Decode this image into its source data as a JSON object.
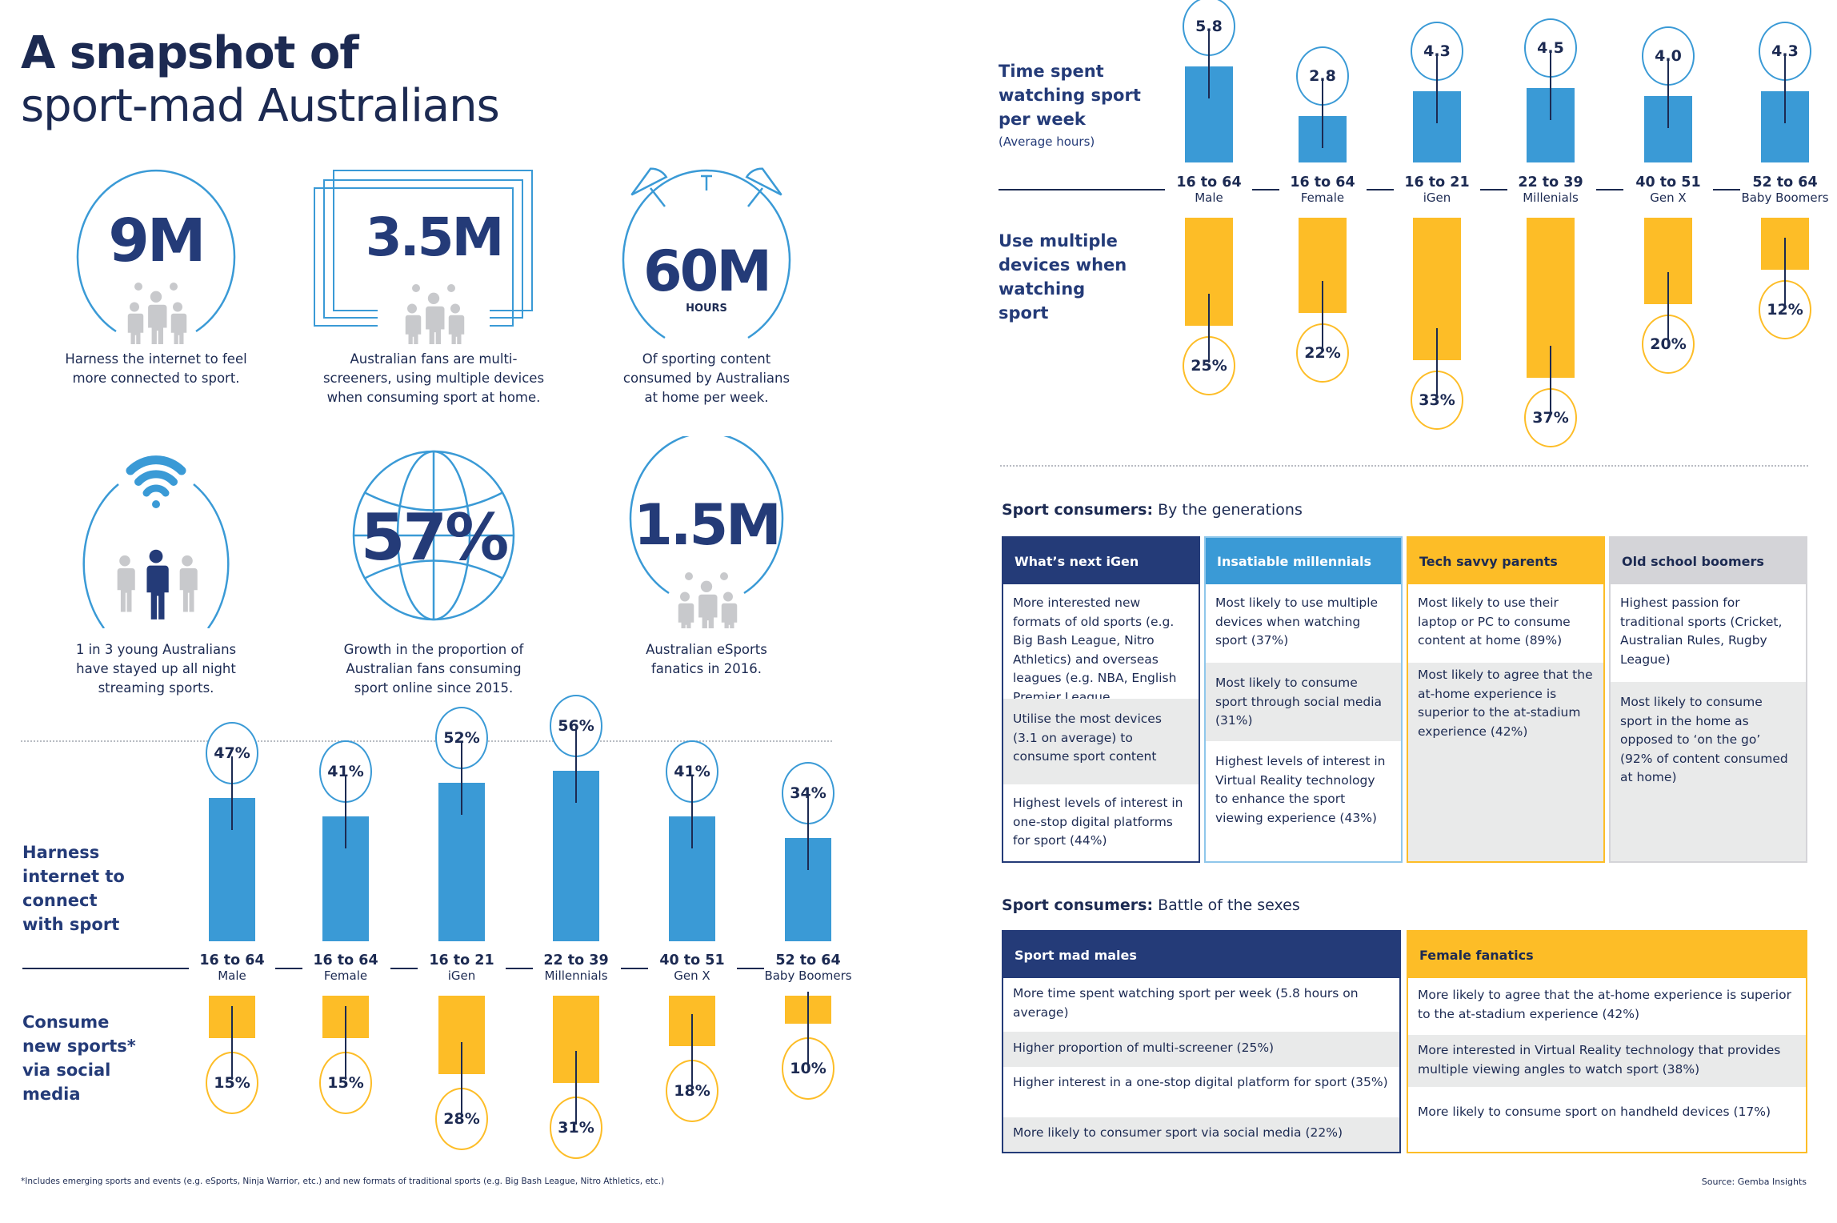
{
  "title": {
    "line1": "A snapshot of",
    "line2": "sport-mad Australians"
  },
  "colors": {
    "navy": "#243b78",
    "blue": "#3a9ad6",
    "gold": "#fdbd27",
    "grey": "#d4d4d8",
    "light_grey": "#e9eaea",
    "figure_grey": "#c8c9cc"
  },
  "stats": [
    {
      "value": "9M",
      "icon": "people-in-circle-icon",
      "caption": [
        "Harness the internet to feel",
        "more connected to sport."
      ]
    },
    {
      "value": "3.5M",
      "icon": "stacked-screens-icon",
      "caption": [
        "Australian fans are multi-",
        "screeners, using multiple devices",
        "when consuming sport at home."
      ]
    },
    {
      "value": "60M",
      "sub": "HOURS",
      "icon": "alarm-clock-icon",
      "caption": [
        "Of sporting content",
        "consumed by Australians",
        "at home per week."
      ]
    },
    {
      "value": "",
      "icon": "wifi-person-icon",
      "caption": [
        "1 in 3 young Australians",
        "have stayed up all night",
        "streaming sports."
      ]
    },
    {
      "value": "57%",
      "icon": "globe-icon",
      "caption": [
        "Growth in the proportion of",
        "Australian fans consuming",
        "sport online since 2015."
      ]
    },
    {
      "value": "1.5M",
      "icon": "people-in-circle-icon",
      "caption": [
        "Australian eSports",
        "fanatics in 2016."
      ]
    }
  ],
  "chart_data": [
    {
      "type": "bar",
      "title": "Harness internet to connect with sport / Consume new sports* via social media",
      "categories": [
        {
          "range": "16 to 64",
          "name": "Male"
        },
        {
          "range": "16 to 64",
          "name": "Female"
        },
        {
          "range": "16 to 21",
          "name": "iGen"
        },
        {
          "range": "22 to 39",
          "name": "Millennials"
        },
        {
          "range": "40 to 51",
          "name": "Gen X"
        },
        {
          "range": "52 to 64",
          "name": "Baby Boomers"
        }
      ],
      "series": [
        {
          "name": "Harness internet to connect with sport",
          "label_lines": [
            "Harness",
            "internet to",
            "connect",
            "with sport"
          ],
          "direction": "up",
          "color": "#3a9ad6",
          "values": [
            47,
            41,
            52,
            56,
            41,
            34
          ],
          "labels": [
            "47%",
            "41%",
            "52%",
            "56%",
            "41%",
            "34%"
          ]
        },
        {
          "name": "Consume new sports* via social media",
          "label_lines": [
            "Consume",
            "new sports*",
            "via social",
            "media"
          ],
          "direction": "down",
          "color": "#fdbd27",
          "values": [
            15,
            15,
            28,
            31,
            18,
            10
          ],
          "labels": [
            "15%",
            "15%",
            "28%",
            "31%",
            "18%",
            "10%"
          ]
        }
      ],
      "unit": "%"
    },
    {
      "type": "bar",
      "title": "Time spent watching sport per week / Use multiple devices when watching sport",
      "categories": [
        {
          "range": "16 to 64",
          "name": "Male"
        },
        {
          "range": "16 to 64",
          "name": "Female"
        },
        {
          "range": "16 to 21",
          "name": "iGen"
        },
        {
          "range": "22 to 39",
          "name": "Millenials"
        },
        {
          "range": "40 to 51",
          "name": "Gen X"
        },
        {
          "range": "52 to 64",
          "name": "Baby Boomers"
        }
      ],
      "series": [
        {
          "name": "Time spent watching sport per week",
          "label_lines": [
            "Time spent",
            "watching sport",
            "per week"
          ],
          "sublabel": "(Average hours)",
          "direction": "up",
          "color": "#3a9ad6",
          "values": [
            5.8,
            2.8,
            4.3,
            4.5,
            4.0,
            4.3
          ],
          "labels": [
            "5.8",
            "2.8",
            "4.3",
            "4.5",
            "4.0",
            "4.3"
          ]
        },
        {
          "name": "Use multiple devices when watching sport",
          "label_lines": [
            "Use multiple",
            "devices when",
            "watching",
            "sport"
          ],
          "direction": "down",
          "color": "#fdbd27",
          "values": [
            25,
            22,
            33,
            37,
            20,
            12
          ],
          "labels": [
            "25%",
            "22%",
            "33%",
            "37%",
            "20%",
            "12%"
          ]
        }
      ]
    }
  ],
  "footnote": "*Includes emerging sports and events (e.g. eSports, Ninja Warrior, etc.) and new formats of traditional sports (e.g. Big Bash League, Nitro Athletics, etc.)",
  "generations": {
    "heading_bold": "Sport consumers:",
    "heading_rest": " By the generations",
    "cards": [
      {
        "title": "What’s next iGen",
        "rows": [
          "More interested new formats of old sports (e.g. Big Bash League, Nitro Athletics) and overseas leagues (e.g. NBA, English Premier League",
          "Utilise the most devices (3.1 on average) to consume sport content",
          "Highest levels of interest in one-stop digital platforms for sport (44%)"
        ]
      },
      {
        "title": "Insatiable millennials",
        "rows": [
          "Most likely to use multiple devices when watching sport (37%)",
          "Most likely to consume sport through social media (31%)",
          "Highest levels of interest in Virtual Reality technology to enhance the sport viewing experience (43%)"
        ]
      },
      {
        "title": "Tech savvy parents",
        "rows": [
          "Most likely to use their laptop or PC to consume content at home (89%)",
          "Most likely to agree that the at-home experience is superior to the at-stadium experience (42%)"
        ]
      },
      {
        "title": "Old school boomers",
        "rows": [
          "Highest passion for traditional sports (Cricket, Australian Rules, Rugby League)",
          "Most likely to consume sport in the home as opposed to ‘on the go’ (92% of content consumed at home)"
        ]
      }
    ]
  },
  "sexes": {
    "heading_bold": "Sport consumers:",
    "heading_rest": " Battle of the sexes",
    "cards": [
      {
        "title": "Sport mad males",
        "rows": [
          "More time spent watching sport per week (5.8 hours on average)",
          "Higher proportion of multi-screener (25%)",
          "Higher interest in a one-stop digital platform for sport (35%)",
          "More likely to consumer sport via social media (22%)"
        ]
      },
      {
        "title": "Female fanatics",
        "rows": [
          "More likely to agree that the at-home experience is superior to the at-stadium experience (42%)",
          "More interested in Virtual Reality technology that provides multiple viewing angles to watch sport (38%)",
          "More likely to consume sport on handheld devices (17%)"
        ]
      }
    ]
  },
  "source": "Source:  Gemba Insights"
}
